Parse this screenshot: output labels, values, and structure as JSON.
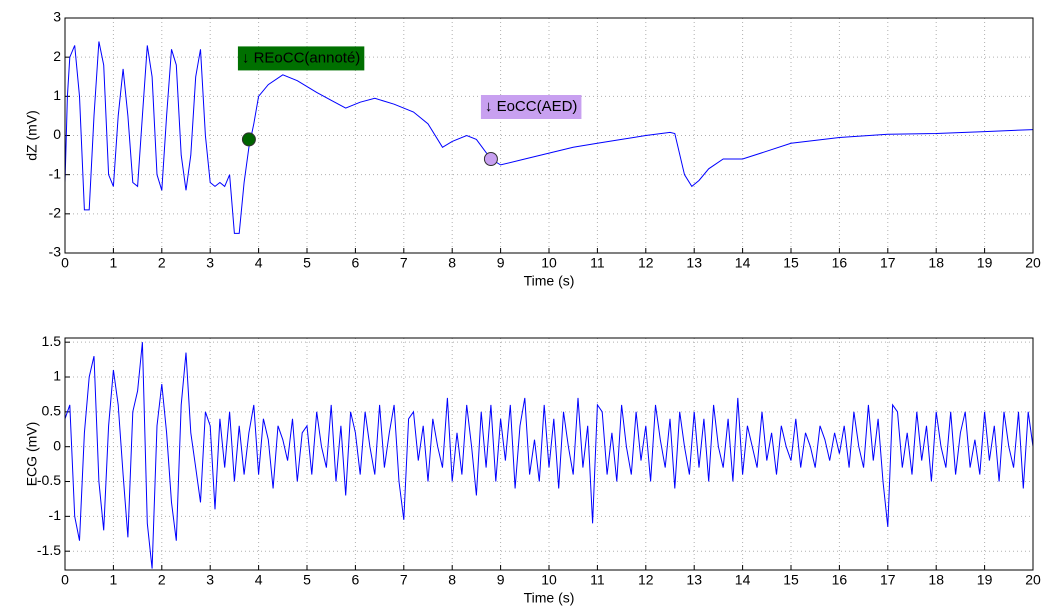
{
  "chart_data": [
    {
      "type": "line",
      "xlabel": "Time (s)",
      "ylabel": "dZ (mV)",
      "color": "#0000ff",
      "grid": true,
      "xlim": [
        0,
        20
      ],
      "ylim": [
        -3,
        3
      ],
      "xticks": [
        0,
        1,
        2,
        3,
        4,
        5,
        6,
        7,
        8,
        9,
        10,
        11,
        12,
        13,
        14,
        15,
        16,
        17,
        18,
        19,
        20
      ],
      "yticks": [
        -3,
        -2,
        -1,
        0,
        1,
        2,
        3
      ],
      "x": [
        0,
        0.05,
        0.1,
        0.2,
        0.3,
        0.4,
        0.5,
        0.6,
        0.7,
        0.8,
        0.9,
        1.0,
        1.1,
        1.2,
        1.3,
        1.4,
        1.5,
        1.6,
        1.7,
        1.8,
        1.9,
        2.0,
        2.1,
        2.2,
        2.3,
        2.4,
        2.5,
        2.6,
        2.7,
        2.8,
        2.9,
        3.0,
        3.1,
        3.2,
        3.3,
        3.4,
        3.5,
        3.6,
        3.7,
        3.8,
        3.9,
        4.0,
        4.2,
        4.5,
        4.8,
        5.2,
        5.5,
        5.8,
        6.1,
        6.4,
        6.8,
        7.2,
        7.5,
        7.8,
        8.0,
        8.3,
        8.5,
        8.8,
        9.0,
        9.5,
        10,
        10.5,
        11,
        11.5,
        12,
        12.5,
        12.6,
        12.8,
        12.95,
        13.1,
        13.3,
        13.6,
        14,
        14.5,
        15,
        16,
        17,
        18,
        19,
        20
      ],
      "values": [
        -1.2,
        1.0,
        2.0,
        2.3,
        1.0,
        -1.9,
        -1.9,
        0.5,
        2.4,
        1.8,
        -1.0,
        -1.3,
        0.5,
        1.7,
        0.5,
        -1.2,
        -1.3,
        0.5,
        2.3,
        1.5,
        -1.0,
        -1.4,
        0.5,
        2.2,
        1.8,
        -0.5,
        -1.4,
        -0.5,
        1.5,
        2.2,
        0,
        -1.2,
        -1.3,
        -1.2,
        -1.3,
        -1.0,
        -2.5,
        -2.5,
        -1.2,
        -0.3,
        0.3,
        1.0,
        1.3,
        1.55,
        1.4,
        1.1,
        0.9,
        0.7,
        0.85,
        0.95,
        0.8,
        0.6,
        0.3,
        -0.3,
        -0.15,
        0,
        -0.1,
        -0.6,
        -0.75,
        -0.6,
        -0.45,
        -0.3,
        -0.2,
        -0.1,
        0,
        0.08,
        0.05,
        -1.0,
        -1.3,
        -1.15,
        -0.85,
        -0.6,
        -0.6,
        -0.4,
        -0.2,
        -0.05,
        0.03,
        0.05,
        0.1,
        0.15
      ],
      "annotations": [
        {
          "text": "↓ REoCC(annoté)",
          "x": 3.8,
          "y": -0.1,
          "color": "#006400",
          "box_color": "#007000",
          "text_color": "#ffffff"
        },
        {
          "text": "↓ EoCC(AED)",
          "x": 8.8,
          "y": -0.6,
          "color": "#c8a0f0",
          "box_color": "#c8a0f0",
          "text_color": "#000000"
        }
      ]
    },
    {
      "type": "line",
      "xlabel": "Time (s)",
      "ylabel": "ECG (mV)",
      "color": "#0000ff",
      "grid": true,
      "xlim": [
        0,
        20
      ],
      "ylim": [
        -1.77,
        1.56
      ],
      "xticks": [
        0,
        1,
        2,
        3,
        4,
        5,
        6,
        7,
        8,
        9,
        10,
        11,
        12,
        13,
        14,
        15,
        16,
        17,
        18,
        19,
        20
      ],
      "yticks": [
        -1.5,
        -1,
        -0.5,
        0,
        0.5,
        1,
        1.5
      ],
      "x": [
        0,
        0.1,
        0.2,
        0.3,
        0.4,
        0.5,
        0.6,
        0.7,
        0.8,
        0.9,
        1,
        1.1,
        1.2,
        1.3,
        1.4,
        1.5,
        1.6,
        1.7,
        1.8,
        1.9,
        2,
        2.1,
        2.2,
        2.3,
        2.4,
        2.5,
        2.6,
        2.7,
        2.8,
        2.9,
        3,
        3.1,
        3.2,
        3.3,
        3.4,
        3.5,
        3.6,
        3.7,
        3.8,
        3.9,
        4,
        4.1,
        4.2,
        4.3,
        4.4,
        4.5,
        4.6,
        4.7,
        4.8,
        4.9,
        5,
        5.1,
        5.2,
        5.3,
        5.4,
        5.5,
        5.6,
        5.7,
        5.8,
        5.9,
        6,
        6.1,
        6.2,
        6.3,
        6.4,
        6.5,
        6.6,
        6.7,
        6.8,
        6.9,
        7,
        7.1,
        7.2,
        7.3,
        7.4,
        7.5,
        7.6,
        7.7,
        7.8,
        7.9,
        8,
        8.1,
        8.2,
        8.3,
        8.4,
        8.5,
        8.6,
        8.7,
        8.8,
        8.9,
        9,
        9.1,
        9.2,
        9.3,
        9.4,
        9.5,
        9.6,
        9.7,
        9.8,
        9.9,
        10,
        10.1,
        10.2,
        10.3,
        10.4,
        10.5,
        10.6,
        10.7,
        10.8,
        10.9,
        11,
        11.1,
        11.2,
        11.3,
        11.4,
        11.5,
        11.6,
        11.7,
        11.8,
        11.9,
        12,
        12.1,
        12.2,
        12.3,
        12.4,
        12.5,
        12.6,
        12.7,
        12.8,
        12.9,
        13,
        13.1,
        13.2,
        13.3,
        13.4,
        13.5,
        13.6,
        13.7,
        13.8,
        13.9,
        14,
        14.1,
        14.2,
        14.3,
        14.4,
        14.5,
        14.6,
        14.7,
        14.8,
        14.9,
        15,
        15.1,
        15.2,
        15.3,
        15.4,
        15.5,
        15.6,
        15.7,
        15.8,
        15.9,
        16,
        16.1,
        16.2,
        16.3,
        16.4,
        16.5,
        16.6,
        16.7,
        16.8,
        16.9,
        17,
        17.1,
        17.2,
        17.3,
        17.4,
        17.5,
        17.6,
        17.7,
        17.8,
        17.9,
        18,
        18.1,
        18.2,
        18.3,
        18.4,
        18.5,
        18.6,
        18.7,
        18.8,
        18.9,
        19,
        19.1,
        19.2,
        19.3,
        19.4,
        19.5,
        19.6,
        19.7,
        19.8,
        19.9,
        20
      ],
      "values": [
        0.4,
        0.6,
        -1.0,
        -1.35,
        0.2,
        1.0,
        1.3,
        -0.5,
        -1.2,
        0.3,
        1.1,
        0.6,
        -0.4,
        -1.3,
        0.5,
        0.8,
        1.5,
        -1.1,
        -1.75,
        0.3,
        0.9,
        0.2,
        -0.8,
        -1.35,
        0.6,
        1.35,
        0.2,
        -0.3,
        -0.8,
        0.5,
        0.3,
        -0.9,
        0.4,
        -0.3,
        0.5,
        -0.5,
        0.3,
        -0.4,
        0.2,
        0.6,
        -0.4,
        0.4,
        0.1,
        -0.6,
        0.3,
        0.1,
        -0.2,
        0.4,
        -0.5,
        0.2,
        0.3,
        -0.4,
        0.5,
        0.0,
        -0.3,
        0.6,
        -0.5,
        0.3,
        -0.7,
        0.5,
        0.2,
        -0.4,
        0.5,
        0.0,
        -0.4,
        0.6,
        -0.3,
        0.2,
        0.6,
        -0.5,
        -1.05,
        0.4,
        0.5,
        -0.2,
        0.3,
        -0.5,
        0.4,
        0.0,
        -0.3,
        0.7,
        -0.5,
        0.2,
        -0.4,
        0.6,
        0.0,
        -0.7,
        0.5,
        -0.3,
        0.6,
        -0.5,
        0.4,
        -0.2,
        0.6,
        -0.6,
        0.3,
        0.7,
        -0.4,
        0.1,
        -0.5,
        0.6,
        -0.3,
        0.4,
        -0.6,
        0.5,
        0.0,
        -0.4,
        0.7,
        -0.3,
        0.3,
        -1.1,
        0.6,
        0.5,
        -0.4,
        0.2,
        -0.5,
        0.6,
        0.0,
        -0.4,
        0.5,
        -0.2,
        0.3,
        -0.5,
        0.6,
        0.1,
        -0.3,
        0.4,
        -0.6,
        0.5,
        0.0,
        -0.4,
        0.5,
        -0.3,
        0.4,
        -0.5,
        0.6,
        0.0,
        -0.3,
        0.4,
        -0.5,
        0.7,
        -0.4,
        0.3,
        0.0,
        -0.3,
        0.5,
        -0.2,
        0.2,
        -0.4,
        0.3,
        0.0,
        -0.2,
        0.4,
        -0.3,
        0.2,
        0.0,
        -0.3,
        0.3,
        0.1,
        -0.2,
        0.2,
        -0.1,
        0.3,
        -0.3,
        0.5,
        0.0,
        -0.3,
        0.6,
        -0.2,
        0.4,
        -0.5,
        -1.15,
        0.6,
        0.5,
        -0.3,
        0.2,
        -0.4,
        0.5,
        -0.2,
        0.3,
        -0.5,
        0.5,
        0.0,
        -0.3,
        0.5,
        -0.4,
        0.2,
        0.5,
        -0.3,
        0.1,
        -0.4,
        0.5,
        -0.2,
        0.3,
        -0.5,
        0.5,
        0.0,
        -0.3,
        0.5,
        -0.6,
        0.5,
        0.0
      ]
    }
  ]
}
